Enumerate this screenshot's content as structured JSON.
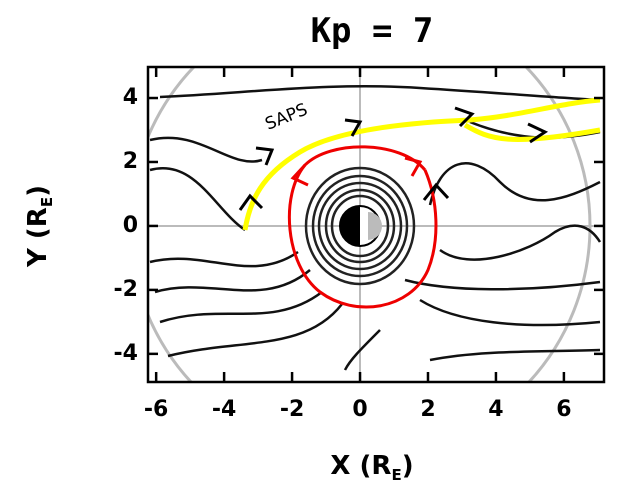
{
  "chart_data": {
    "type": "streamline",
    "title": "Kp = 7",
    "xlabel": [
      "X (R",
      "E",
      ")"
    ],
    "ylabel": [
      "Y (R",
      "E",
      ")"
    ],
    "annotation": "SAPS",
    "xlim": [
      -6.24,
      7.18
    ],
    "xticks": [
      -6,
      -4,
      -2,
      0,
      2,
      4,
      6
    ],
    "ylim": [
      -4.88,
      4.97
    ],
    "yticks": [
      -4,
      -2,
      0,
      2,
      4
    ]
  }
}
